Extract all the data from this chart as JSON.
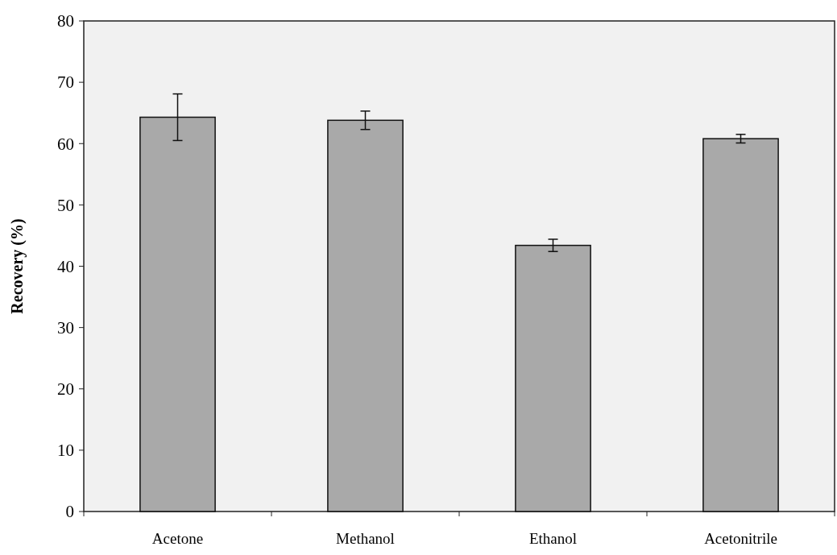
{
  "chart_data": {
    "type": "bar",
    "ylabel": "Recovery (%)",
    "categories": [
      "Acetone",
      "Methanol",
      "Ethanol",
      "Acetonitrile"
    ],
    "values": [
      64.3,
      63.8,
      43.4,
      60.8
    ],
    "errors": [
      3.8,
      1.5,
      1.0,
      0.7
    ],
    "color": "#a9a9a9",
    "ylim": [
      0,
      80
    ],
    "yticks": [
      0,
      10,
      20,
      30,
      40,
      50,
      60,
      70,
      80
    ],
    "grid": false
  }
}
